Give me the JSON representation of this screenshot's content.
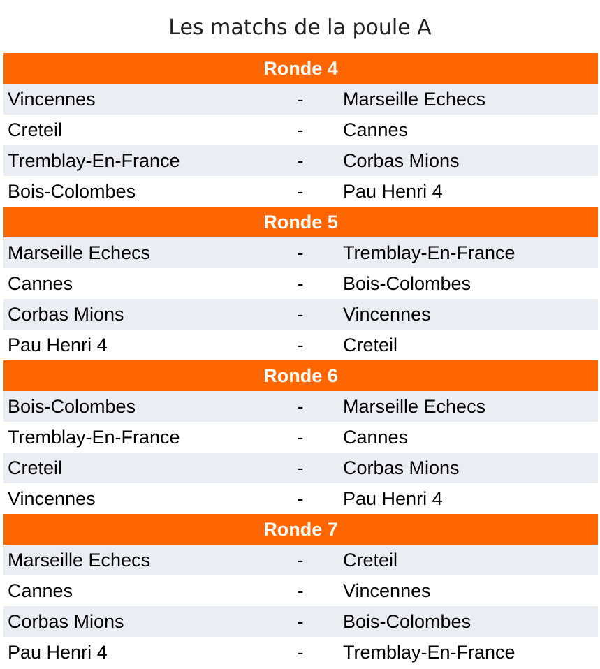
{
  "title": "Les matchs de la poule A",
  "colors": {
    "header": "#ff6600",
    "stripe": "#eaedf4"
  },
  "separator": "-",
  "rounds": [
    {
      "label": "Ronde 4",
      "matches": [
        [
          "Vincennes",
          "Marseille Echecs"
        ],
        [
          "Creteil",
          "Cannes"
        ],
        [
          "Tremblay-En-France",
          "Corbas Mions"
        ],
        [
          "Bois-Colombes",
          "Pau Henri 4"
        ]
      ]
    },
    {
      "label": "Ronde 5",
      "matches": [
        [
          "Marseille Echecs",
          "Tremblay-En-France"
        ],
        [
          "Cannes",
          "Bois-Colombes"
        ],
        [
          "Corbas Mions",
          "Vincennes"
        ],
        [
          "Pau Henri 4",
          "Creteil"
        ]
      ]
    },
    {
      "label": "Ronde 6",
      "matches": [
        [
          "Bois-Colombes",
          "Marseille Echecs"
        ],
        [
          "Tremblay-En-France",
          "Cannes"
        ],
        [
          "Creteil",
          "Corbas Mions"
        ],
        [
          "Vincennes",
          "Pau Henri 4"
        ]
      ]
    },
    {
      "label": "Ronde 7",
      "matches": [
        [
          "Marseille Echecs",
          "Creteil"
        ],
        [
          "Cannes",
          "Vincennes"
        ],
        [
          "Corbas Mions",
          "Bois-Colombes"
        ],
        [
          "Pau Henri 4",
          "Tremblay-En-France"
        ]
      ]
    }
  ]
}
